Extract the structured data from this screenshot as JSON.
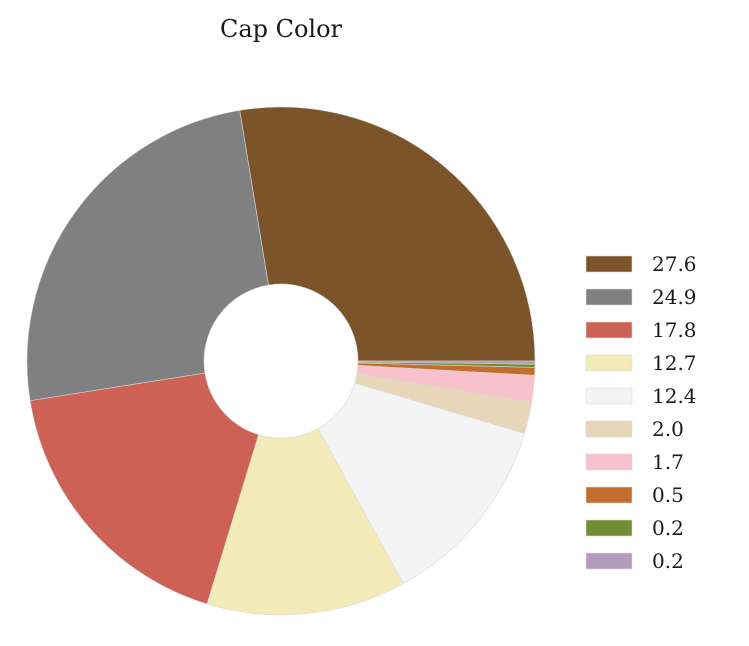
{
  "chart_data": {
    "type": "pie",
    "title": "Cap Color",
    "hole": true,
    "legend_position": "right",
    "slices": [
      {
        "label": "27.6",
        "value": 27.6,
        "color": "#7b542a"
      },
      {
        "label": "24.9",
        "value": 24.9,
        "color": "#808080"
      },
      {
        "label": "17.8",
        "value": 17.8,
        "color": "#cd6155"
      },
      {
        "label": "12.7",
        "value": 12.7,
        "color": "#f2ebb7"
      },
      {
        "label": "12.4",
        "value": 12.4,
        "color": "#f4f4f4"
      },
      {
        "label": "2.0",
        "value": 2.0,
        "color": "#e7d7b8"
      },
      {
        "label": "1.7",
        "value": 1.7,
        "color": "#f7c2cb"
      },
      {
        "label": "0.5",
        "value": 0.5,
        "color": "#c46e2e"
      },
      {
        "label": "0.2",
        "value": 0.2,
        "color": "#6f8d33"
      },
      {
        "label": "0.2",
        "value": 0.2,
        "color": "#b39cbb"
      }
    ]
  }
}
